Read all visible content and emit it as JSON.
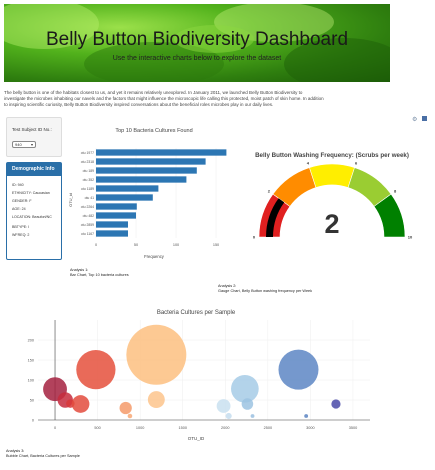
{
  "header": {
    "title": "Belly Button Biodiversity Dashboard",
    "subtitle": "Use the interactive charts below to explore the dataset"
  },
  "intro": {
    "line1": "The belly button is one of the habitats closest to us, and yet it remains relatively unexplored. In January 2011, we launched Belly Button Biodiversity to",
    "line2": "investigate the microbes inhabiting our navels and the factors that might influence the microscopic life calling this protected, moist patch of skin home. In addition",
    "line3": "to inspiring scientific curiosity, Belly Button Biodiversity inspired conversations about the beneficial roles microbes play in our daily lives."
  },
  "selector": {
    "label": "Test Subject ID No.:",
    "value": "940"
  },
  "demographics": {
    "title": "Demographic Info",
    "lines": [
      "ID: 940",
      "ETHNICITY: Caucasian",
      "GENDER: F",
      "AGE: 24",
      "LOCATION: Beaufort/NC",
      "BBTYPE: I",
      "WFREQ: 2"
    ]
  },
  "toolbar": {
    "icon1": "chart-settings-icon",
    "icon2": "save-icon"
  },
  "bar_chart": {
    "title": "Top 10 Bacteria Cultures Found",
    "ylabel": "OTU_id",
    "xlabel": "Frequency",
    "caption_line1": "Analysis 1:",
    "caption_line2": "Bar Chart, Top 10 bacteria cultures"
  },
  "gauge": {
    "title": "Belly Button Washing Frequency: (Scrubs per week)",
    "value_text": "2",
    "caption_line1": "Analysis 2:",
    "caption_line2": "Gauge Chart, Belly Button washing frequency per Week"
  },
  "bubble_chart": {
    "title": "Bacteria Cultures per Sample",
    "xlabel": "OTU_ID",
    "caption_line1": "Analysis 3:",
    "caption_line2": "Bubble Chart, Bacteria Cultures per Sample"
  },
  "chart_data": [
    {
      "type": "bar",
      "orientation": "horizontal",
      "title": "Top 10 Bacteria Cultures Found",
      "xlabel": "Frequency",
      "ylabel": "OTU_id",
      "categories": [
        "otu 1167",
        "otu 2859",
        "otu 482",
        "otu 2264",
        "otu 41",
        "otu 1189",
        "otu 352",
        "otu 189",
        "otu 2318",
        "otu 1977"
      ],
      "values": [
        40,
        40,
        50,
        51,
        71,
        78,
        113,
        126,
        137,
        163
      ],
      "xlim": [
        0,
        175
      ],
      "xticks": [
        0,
        50,
        100,
        150
      ],
      "color": "#2c76b3"
    },
    {
      "type": "gauge",
      "title": "Belly Button Washing Frequency: (Scrubs per week)",
      "value": 2,
      "range": [
        0,
        10
      ],
      "ticks": [
        0,
        2,
        4,
        6,
        8,
        10
      ],
      "bands": [
        {
          "from": 0,
          "to": 2,
          "color": "#e02020"
        },
        {
          "from": 2,
          "to": 4,
          "color": "#ff8c00"
        },
        {
          "from": 4,
          "to": 6,
          "color": "#ffee00"
        },
        {
          "from": 6,
          "to": 8,
          "color": "#9acd32"
        },
        {
          "from": 8,
          "to": 10,
          "color": "#008000"
        }
      ],
      "bar_color": "#000000"
    },
    {
      "type": "scatter",
      "title": "Bacteria Cultures per Sample",
      "xlabel": "OTU_ID",
      "xlim": [
        -200,
        3700
      ],
      "ylim": [
        0,
        250
      ],
      "xticks": [
        0,
        500,
        1000,
        1500,
        2000,
        2500,
        3000,
        3500
      ],
      "yticks": [
        0,
        50,
        100,
        150,
        200
      ],
      "points": [
        {
          "x": 0,
          "y": 77,
          "r": 31,
          "color": "#a5213f"
        },
        {
          "x": 120,
          "y": 50,
          "r": 20,
          "color": "#c62b3d"
        },
        {
          "x": 180,
          "y": 41,
          "r": 11,
          "color": "#d8383a"
        },
        {
          "x": 300,
          "y": 40,
          "r": 23,
          "color": "#e34b3d"
        },
        {
          "x": 480,
          "y": 126,
          "r": 51,
          "color": "#e5503c"
        },
        {
          "x": 830,
          "y": 30,
          "r": 16,
          "color": "#f49a6a"
        },
        {
          "x": 880,
          "y": 10,
          "r": 6,
          "color": "#f8a875"
        },
        {
          "x": 1190,
          "y": 163,
          "r": 78,
          "color": "#fdc080"
        },
        {
          "x": 1190,
          "y": 51,
          "r": 22,
          "color": "#fdc48c"
        },
        {
          "x": 1980,
          "y": 35,
          "r": 18,
          "color": "#c9e0f0"
        },
        {
          "x": 2040,
          "y": 10,
          "r": 8,
          "color": "#c6ddee"
        },
        {
          "x": 2230,
          "y": 78,
          "r": 36,
          "color": "#a6cbe6"
        },
        {
          "x": 2260,
          "y": 40,
          "r": 15,
          "color": "#9cc3e2"
        },
        {
          "x": 2320,
          "y": 10,
          "r": 5,
          "color": "#9ac0e0"
        },
        {
          "x": 2860,
          "y": 126,
          "r": 52,
          "color": "#5d86c4"
        },
        {
          "x": 2950,
          "y": 10,
          "r": 5,
          "color": "#5b84c2"
        },
        {
          "x": 3300,
          "y": 40,
          "r": 12,
          "color": "#4a4aa8"
        }
      ]
    }
  ]
}
